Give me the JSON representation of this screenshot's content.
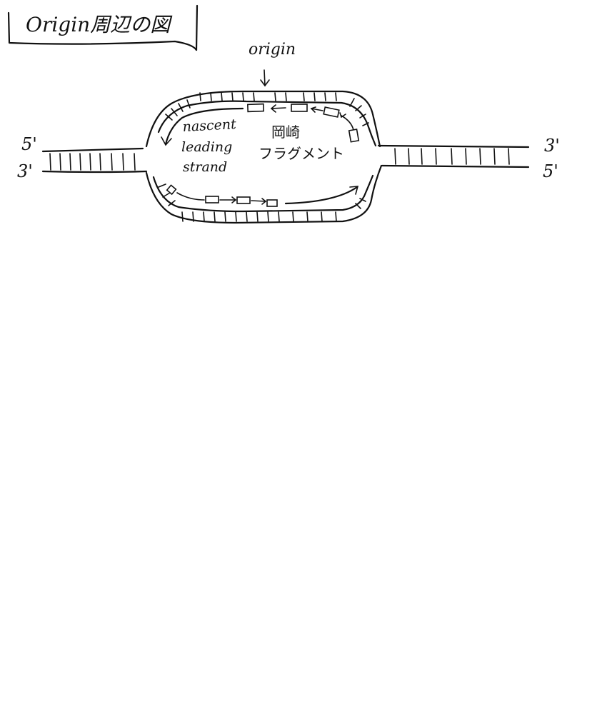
{
  "title": "Origin周辺の図",
  "labels": {
    "origin": "origin",
    "left_top_end": "5'",
    "left_bottom_end": "3'",
    "right_top_end": "3'",
    "right_bottom_end": "5'",
    "nascent_line1": "nascent",
    "nascent_line2": "leading",
    "nascent_line3": "strand",
    "okazaki_line1": "岡崎",
    "okazaki_line2": "フラグメント"
  },
  "colors": {
    "ink": "#111111",
    "paper": "#ffffff"
  }
}
